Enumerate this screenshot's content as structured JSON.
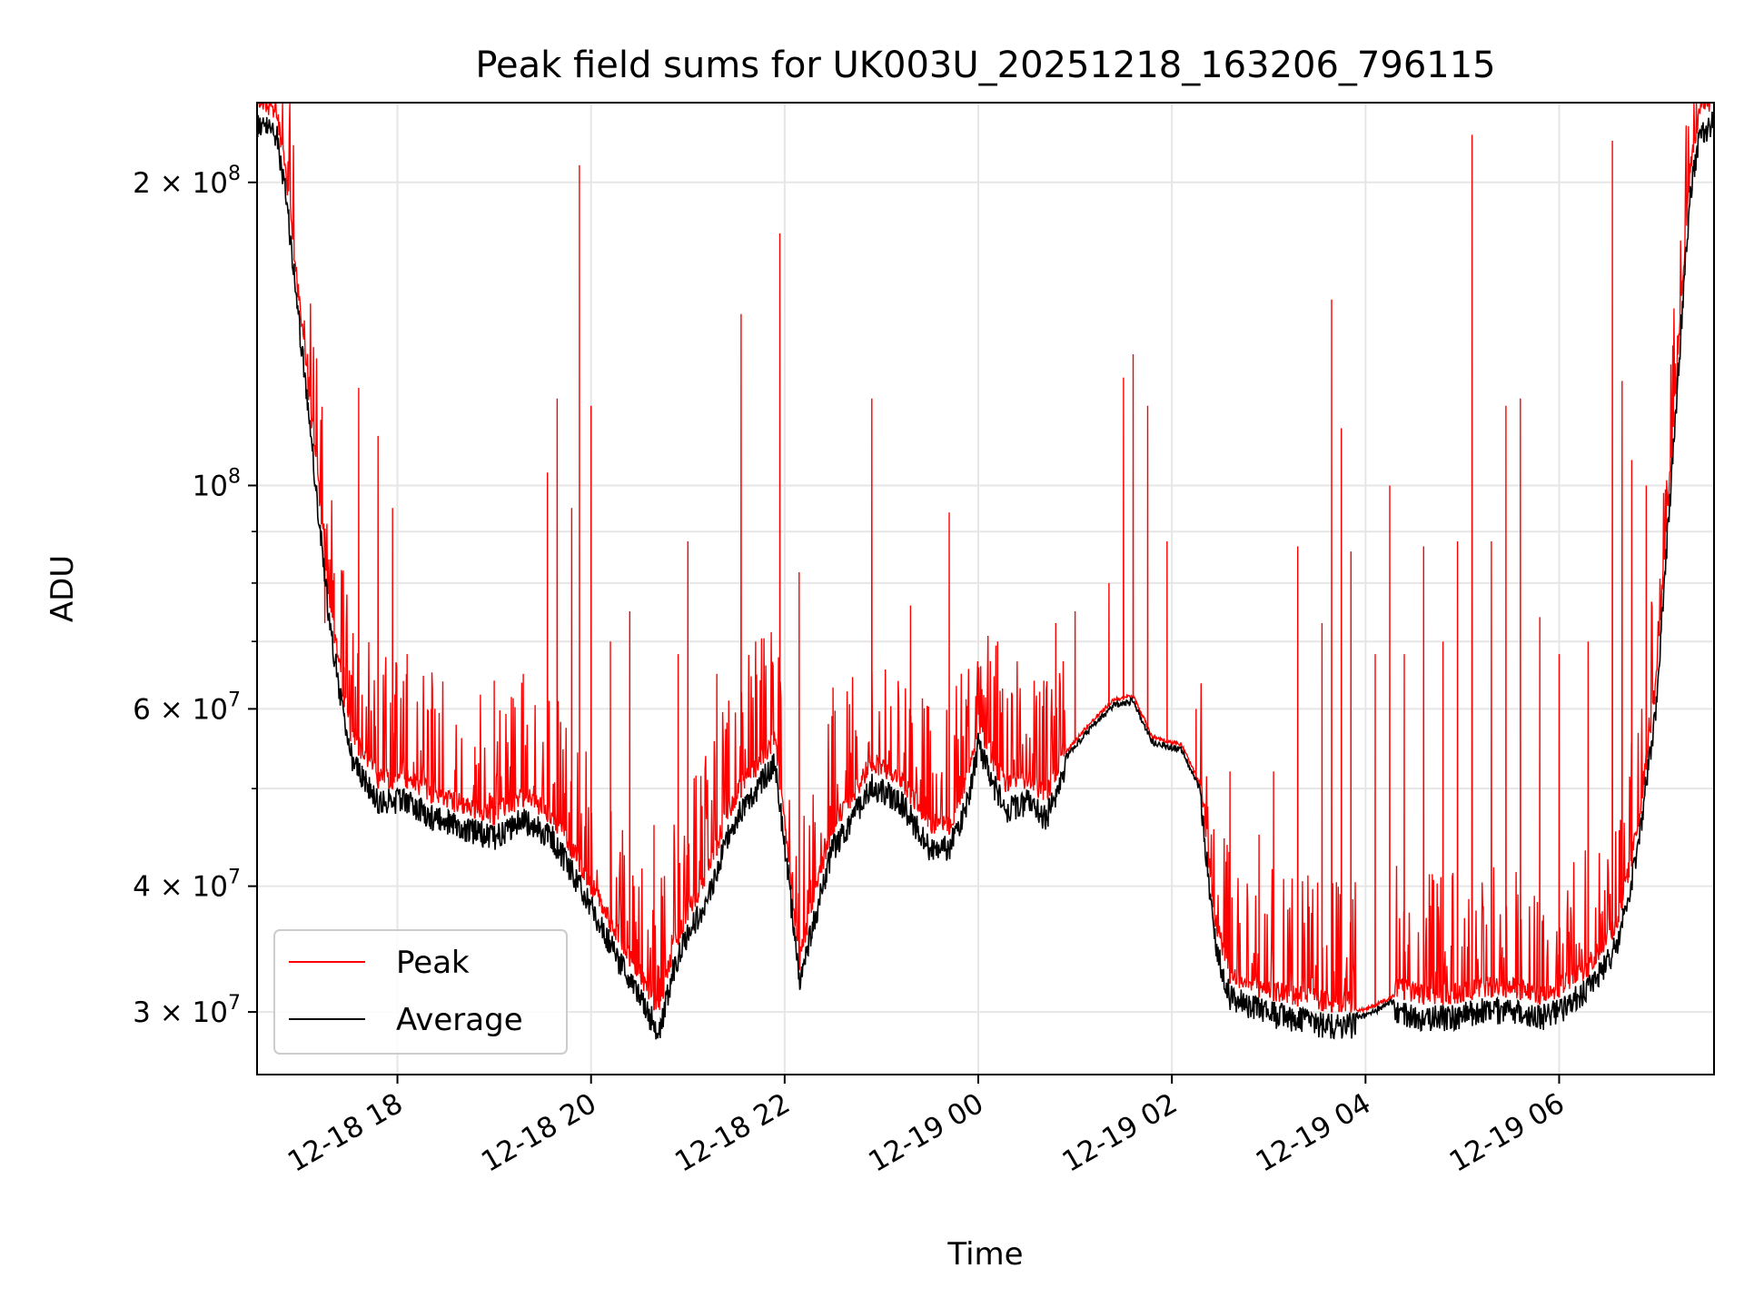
{
  "chart_data": {
    "type": "line",
    "title": "Peak field sums for UK003U_20251218_163206_796115",
    "xlabel": "Time",
    "ylabel": "ADU",
    "yscale": "log",
    "ylim": [
      26000000,
      240000000
    ],
    "xlim_hours": [
      16.55,
      31.6
    ],
    "grid": true,
    "legend_position": "lower-left",
    "x_ticks": [
      {
        "label": "12-18 18",
        "hour": 18
      },
      {
        "label": "12-18 20",
        "hour": 20
      },
      {
        "label": "12-18 22",
        "hour": 22
      },
      {
        "label": "12-19 00",
        "hour": 24
      },
      {
        "label": "12-19 02",
        "hour": 26
      },
      {
        "label": "12-19 04",
        "hour": 28
      },
      {
        "label": "12-19 06",
        "hour": 30
      }
    ],
    "y_ticks": [
      {
        "label_base": "3 × 10",
        "exp": "7",
        "value": 30000000
      },
      {
        "label_base": "4 × 10",
        "exp": "7",
        "value": 40000000
      },
      {
        "label_base": "6 × 10",
        "exp": "7",
        "value": 60000000
      },
      {
        "label_base": "10",
        "exp": "8",
        "value": 100000000
      },
      {
        "label_base": "2 × 10",
        "exp": "8",
        "value": 200000000
      }
    ],
    "y_minor_ticks": [
      50000000,
      70000000,
      80000000,
      90000000
    ],
    "series": [
      {
        "name": "Peak",
        "color": "#ff0000",
        "baseline_points": [
          [
            16.55,
            236000000
          ],
          [
            16.75,
            231000000
          ],
          [
            16.85,
            200000000
          ],
          [
            16.95,
            160000000
          ],
          [
            17.05,
            130000000
          ],
          [
            17.15,
            105000000
          ],
          [
            17.3,
            75000000
          ],
          [
            17.5,
            56000000
          ],
          [
            17.8,
            50000000
          ],
          [
            18.1,
            50000000
          ],
          [
            18.4,
            48000000
          ],
          [
            18.7,
            47000000
          ],
          [
            19.0,
            46000000
          ],
          [
            19.3,
            48000000
          ],
          [
            19.6,
            46000000
          ],
          [
            19.9,
            41000000
          ],
          [
            20.2,
            36000000
          ],
          [
            20.5,
            32000000
          ],
          [
            20.7,
            29500000
          ],
          [
            20.85,
            34000000
          ],
          [
            21.0,
            37000000
          ],
          [
            21.2,
            40000000
          ],
          [
            21.4,
            46000000
          ],
          [
            21.6,
            50000000
          ],
          [
            21.75,
            52000000
          ],
          [
            21.9,
            55000000
          ],
          [
            22.05,
            41000000
          ],
          [
            22.15,
            33000000
          ],
          [
            22.3,
            38000000
          ],
          [
            22.5,
            45000000
          ],
          [
            22.7,
            48000000
          ],
          [
            22.9,
            52000000
          ],
          [
            23.2,
            50000000
          ],
          [
            23.5,
            45000000
          ],
          [
            23.7,
            45000000
          ],
          [
            23.9,
            50000000
          ],
          [
            24.0,
            57000000
          ],
          [
            24.15,
            52000000
          ],
          [
            24.3,
            49000000
          ],
          [
            24.5,
            50000000
          ],
          [
            24.7,
            48000000
          ],
          [
            24.9,
            54000000
          ],
          [
            25.1,
            57000000
          ],
          [
            25.4,
            61000000
          ],
          [
            25.6,
            61500000
          ],
          [
            25.8,
            56000000
          ],
          [
            26.1,
            55000000
          ],
          [
            26.3,
            50000000
          ],
          [
            26.45,
            36000000
          ],
          [
            26.6,
            32000000
          ],
          [
            26.9,
            31000000
          ],
          [
            27.2,
            30500000
          ],
          [
            27.6,
            30000000
          ],
          [
            28.0,
            30000000
          ],
          [
            28.3,
            31000000
          ],
          [
            28.6,
            30500000
          ],
          [
            28.9,
            30500000
          ],
          [
            29.2,
            31000000
          ],
          [
            29.5,
            31000000
          ],
          [
            29.8,
            30500000
          ],
          [
            30.0,
            31000000
          ],
          [
            30.3,
            32500000
          ],
          [
            30.6,
            36000000
          ],
          [
            30.8,
            44000000
          ],
          [
            31.0,
            62000000
          ],
          [
            31.2,
            120000000
          ],
          [
            31.35,
            200000000
          ],
          [
            31.45,
            230000000
          ],
          [
            31.6,
            236000000
          ]
        ],
        "spikes": [
          [
            17.25,
            73000000
          ],
          [
            17.35,
            70000000
          ],
          [
            17.45,
            66000000
          ],
          [
            17.6,
            125000000
          ],
          [
            17.8,
            112000000
          ],
          [
            17.95,
            95000000
          ],
          [
            18.1,
            68000000
          ],
          [
            18.35,
            60000000
          ],
          [
            18.8,
            55000000
          ],
          [
            19.0,
            64000000
          ],
          [
            19.3,
            65000000
          ],
          [
            19.55,
            103000000
          ],
          [
            19.65,
            122000000
          ],
          [
            19.8,
            95000000
          ],
          [
            19.88,
            208000000
          ],
          [
            20.0,
            120000000
          ],
          [
            20.2,
            70000000
          ],
          [
            20.4,
            75000000
          ],
          [
            20.65,
            46000000
          ],
          [
            20.9,
            68000000
          ],
          [
            21.0,
            88000000
          ],
          [
            21.3,
            65000000
          ],
          [
            21.55,
            148000000
          ],
          [
            21.7,
            70000000
          ],
          [
            21.95,
            178000000
          ],
          [
            22.15,
            82000000
          ],
          [
            22.5,
            63000000
          ],
          [
            22.9,
            122000000
          ],
          [
            23.3,
            76000000
          ],
          [
            23.7,
            94000000
          ],
          [
            24.2,
            70000000
          ],
          [
            24.8,
            73000000
          ],
          [
            25.0,
            75000000
          ],
          [
            25.35,
            80000000
          ],
          [
            25.5,
            128000000
          ],
          [
            25.6,
            135000000
          ],
          [
            25.75,
            120000000
          ],
          [
            25.95,
            88000000
          ],
          [
            26.25,
            60000000
          ],
          [
            26.6,
            52000000
          ],
          [
            26.9,
            45000000
          ],
          [
            27.05,
            52000000
          ],
          [
            27.3,
            87000000
          ],
          [
            27.55,
            73000000
          ],
          [
            27.65,
            153000000
          ],
          [
            27.75,
            114000000
          ],
          [
            27.85,
            86000000
          ],
          [
            28.1,
            68000000
          ],
          [
            28.25,
            100000000
          ],
          [
            28.4,
            68000000
          ],
          [
            28.6,
            87000000
          ],
          [
            28.8,
            70000000
          ],
          [
            28.95,
            88000000
          ],
          [
            29.1,
            223000000
          ],
          [
            29.3,
            88000000
          ],
          [
            29.45,
            120000000
          ],
          [
            29.6,
            122000000
          ],
          [
            29.8,
            74000000
          ],
          [
            30.0,
            68000000
          ],
          [
            30.3,
            70000000
          ],
          [
            30.55,
            220000000
          ],
          [
            30.65,
            127000000
          ],
          [
            30.75,
            106000000
          ],
          [
            30.9,
            100000000
          ]
        ]
      },
      {
        "name": "Average",
        "color": "#000000"
      }
    ]
  }
}
